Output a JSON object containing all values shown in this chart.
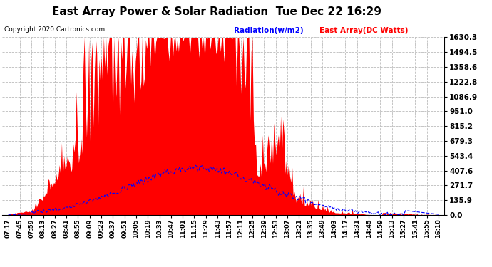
{
  "title": "East Array Power & Solar Radiation  Tue Dec 22 16:29",
  "copyright": "Copyright 2020 Cartronics.com",
  "legend_radiation": "Radiation(w/m2)",
  "legend_array": "East Array(DC Watts)",
  "y_max": 1630.3,
  "y_min": 0.0,
  "y_ticks": [
    0.0,
    135.9,
    271.7,
    407.6,
    543.4,
    679.3,
    815.2,
    951.0,
    1086.9,
    1222.8,
    1358.6,
    1494.5,
    1630.3
  ],
  "background_color": "#ffffff",
  "grid_color": "#bbbbbb",
  "red_color": "#ff0000",
  "blue_color": "#0000ff",
  "title_fontsize": 11,
  "tick_fontsize": 7.5,
  "x_tick_labels": [
    "07:17",
    "07:45",
    "07:59",
    "08:13",
    "08:27",
    "08:41",
    "08:55",
    "09:09",
    "09:23",
    "09:37",
    "09:51",
    "10:05",
    "10:19",
    "10:33",
    "10:47",
    "11:01",
    "11:15",
    "11:29",
    "11:43",
    "11:57",
    "12:11",
    "12:25",
    "12:39",
    "12:53",
    "13:07",
    "13:21",
    "13:35",
    "13:49",
    "14:03",
    "14:17",
    "14:31",
    "14:45",
    "14:59",
    "15:13",
    "15:27",
    "15:41",
    "15:55",
    "16:10"
  ]
}
